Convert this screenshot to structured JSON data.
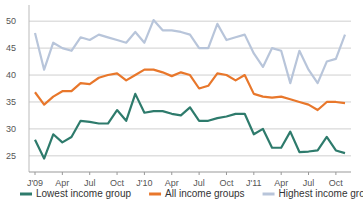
{
  "chart_data": {
    "type": "line",
    "categories": [
      "J'09",
      null,
      null,
      "Apr",
      null,
      null,
      "Jul",
      null,
      null,
      "Oct",
      null,
      null,
      "J'10",
      null,
      null,
      "Apr",
      null,
      null,
      "Jul",
      null,
      null,
      "Oct",
      null,
      null,
      "J'11",
      null,
      null,
      "Apr",
      null,
      null,
      "Jul",
      null,
      null,
      "Oct",
      null
    ],
    "series": [
      {
        "name": "Lowest income group",
        "color": "#2e7b6c",
        "values": [
          28,
          24.5,
          29,
          27.5,
          28.5,
          31.5,
          31.3,
          31,
          31,
          33.5,
          31.5,
          36.5,
          33,
          33.3,
          33.3,
          32.8,
          32.5,
          34,
          31.5,
          31.5,
          32,
          32.3,
          32.8,
          32.8,
          29,
          30,
          26.5,
          26.5,
          29.5,
          25.7,
          25.8,
          26,
          28.5,
          26,
          25.5
        ]
      },
      {
        "name": "All income groups",
        "color": "#e8772b",
        "values": [
          36.8,
          34.5,
          36,
          37,
          37,
          38.5,
          38.3,
          39.5,
          40,
          40.3,
          39,
          40,
          41,
          41,
          40.5,
          39.8,
          40.5,
          40,
          37.5,
          38,
          40.3,
          40,
          39,
          40,
          36.5,
          36,
          35.8,
          36,
          35.5,
          35,
          34.5,
          33.5,
          35,
          35,
          34.8
        ]
      },
      {
        "name": "Highest income group",
        "color": "#b8c5da",
        "values": [
          47.8,
          41,
          46,
          45,
          44.5,
          47,
          46.5,
          47.5,
          47,
          46.5,
          46,
          48,
          46,
          50.2,
          48.3,
          48.3,
          48,
          47.5,
          45,
          45,
          49.5,
          46.5,
          47,
          47.5,
          44,
          41.5,
          45,
          44.5,
          38.5,
          44.5,
          41,
          38.5,
          42.5,
          43,
          47.5
        ]
      }
    ],
    "ylim": [
      22,
      53
    ],
    "yticks": [
      25,
      30,
      35,
      40,
      45,
      50
    ],
    "grid": true,
    "legend": "bottom"
  }
}
